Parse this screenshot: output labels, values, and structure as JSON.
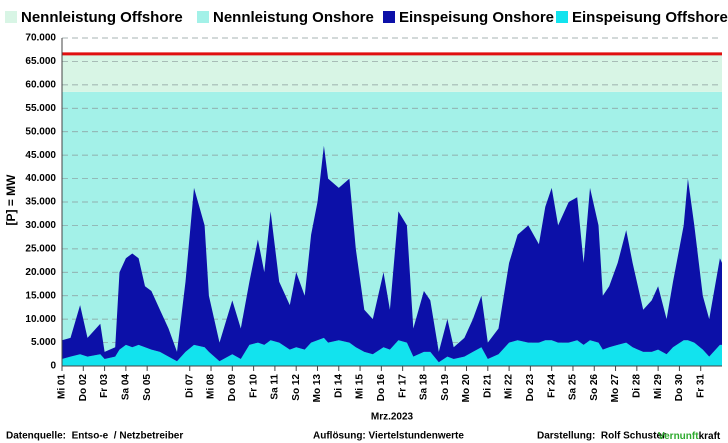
{
  "chart_data": {
    "type": "stacked_area",
    "legend": "top",
    "grid": true,
    "y_label": "[P] = MW",
    "x_label": "Mrz.2023",
    "capacity": [
      {
        "name": "Nennleistung Onshore",
        "color": "#a3f1e8",
        "value": 58500
      },
      {
        "name": "Nennleistung Offshore",
        "color": "#d8f5e5",
        "value": 8100
      }
    ],
    "capacity_line_color": "#e01010",
    "xlim": [
      0,
      31
    ],
    "xticks": [
      {
        "value": 0,
        "label": "Mi 01"
      },
      {
        "value": 1,
        "label": "Do 02"
      },
      {
        "value": 2,
        "label": "Fr 03"
      },
      {
        "value": 3,
        "label": "Sa 04"
      },
      {
        "value": 4,
        "label": "So 05"
      },
      {
        "value": 6,
        "label": "Di 07"
      },
      {
        "value": 7,
        "label": "Mi 08"
      },
      {
        "value": 8,
        "label": "Do 09"
      },
      {
        "value": 9,
        "label": "Fr 10"
      },
      {
        "value": 10,
        "label": "Sa 11"
      },
      {
        "value": 11,
        "label": "So 12"
      },
      {
        "value": 12,
        "label": "Mo 13"
      },
      {
        "value": 13,
        "label": "Di 14"
      },
      {
        "value": 14,
        "label": "Mi 15"
      },
      {
        "value": 15,
        "label": "Do 16"
      },
      {
        "value": 16,
        "label": "Fr 17"
      },
      {
        "value": 17,
        "label": "Sa 18"
      },
      {
        "value": 18,
        "label": "So 19"
      },
      {
        "value": 19,
        "label": "Mo 20"
      },
      {
        "value": 20,
        "label": "Di 21"
      },
      {
        "value": 21,
        "label": "Mi 22"
      },
      {
        "value": 22,
        "label": "Do 23"
      },
      {
        "value": 23,
        "label": "Fr 24"
      },
      {
        "value": 24,
        "label": "Sa 25"
      },
      {
        "value": 25,
        "label": "So 26"
      },
      {
        "value": 26,
        "label": "Mo 27"
      },
      {
        "value": 27,
        "label": "Di 28"
      },
      {
        "value": 28,
        "label": "Mi 29"
      },
      {
        "value": 29,
        "label": "Do 30"
      },
      {
        "value": 30,
        "label": "Fr 31"
      }
    ],
    "ylim": [
      0,
      70000
    ],
    "yticks": [
      0,
      {
        "value": 5000,
        "label": "5.000"
      },
      {
        "value": 10000,
        "label": "10.000"
      },
      {
        "value": 15000,
        "label": "15.000"
      },
      {
        "value": 20000,
        "label": "20.000"
      },
      {
        "value": 25000,
        "label": "25.000"
      },
      {
        "value": 30000,
        "label": "30.000"
      },
      {
        "value": 35000,
        "label": "35.000"
      },
      {
        "value": 40000,
        "label": "40.000"
      },
      {
        "value": 45000,
        "label": "45.000"
      },
      {
        "value": 50000,
        "label": "50.000"
      },
      {
        "value": 55000,
        "label": "55.000"
      },
      {
        "value": 60000,
        "label": "60.000"
      },
      {
        "value": 65000,
        "label": "65.000"
      },
      {
        "value": 70000,
        "label": "70.000"
      }
    ],
    "x": [
      0,
      0.4,
      0.85,
      1.2,
      1.8,
      2.0,
      2.5,
      2.7,
      3.0,
      3.3,
      3.6,
      3.9,
      4.2,
      4.6,
      5.0,
      5.4,
      5.8,
      6.2,
      6.7,
      6.9,
      7.4,
      8.0,
      8.4,
      8.8,
      9.2,
      9.5,
      9.8,
      10.2,
      10.7,
      11.0,
      11.4,
      11.7,
      12.0,
      12.3,
      12.5,
      13.0,
      13.5,
      13.8,
      14.2,
      14.6,
      15.1,
      15.4,
      15.8,
      16.2,
      16.5,
      17.0,
      17.3,
      17.7,
      18.1,
      18.4,
      18.9,
      19.3,
      19.7,
      20.0,
      20.5,
      21.0,
      21.4,
      21.9,
      22.4,
      22.7,
      23.0,
      23.3,
      23.8,
      24.2,
      24.5,
      24.8,
      25.2,
      25.4,
      25.7,
      26.1,
      26.5,
      26.8,
      27.3,
      27.7,
      28.0,
      28.4,
      28.7,
      29.2,
      29.4,
      29.7,
      30.1,
      30.4,
      30.9,
      31.0
    ],
    "series": [
      {
        "name": "Einspeisung Offshore",
        "color": "#12e3ee",
        "values": [
          1500,
          2000,
          2500,
          2000,
          2500,
          1500,
          2000,
          3500,
          4500,
          4000,
          4500,
          4000,
          3500,
          3000,
          2000,
          1000,
          3000,
          4500,
          4000,
          3000,
          1000,
          2500,
          1500,
          4500,
          5000,
          4500,
          5500,
          5000,
          3500,
          4000,
          3500,
          5000,
          5500,
          6000,
          5000,
          5500,
          5000,
          4000,
          3000,
          2500,
          4000,
          3500,
          5500,
          5000,
          2000,
          3000,
          3000,
          800,
          2000,
          1500,
          2000,
          3000,
          4000,
          1500,
          2500,
          5000,
          5500,
          5000,
          5000,
          5500,
          5500,
          5000,
          5000,
          5500,
          4500,
          5500,
          5000,
          3500,
          4000,
          4500,
          5000,
          4000,
          3000,
          3000,
          3500,
          2500,
          4000,
          5500,
          5500,
          5000,
          3500,
          2000,
          4500,
          4500
        ]
      },
      {
        "name": "Einspeisung Onshore",
        "color": "#0c10a8",
        "values": [
          4000,
          4000,
          10500,
          4000,
          6500,
          1500,
          2000,
          16500,
          18500,
          20000,
          18500,
          13000,
          12500,
          9000,
          6000,
          2000,
          15000,
          33500,
          26000,
          12000,
          4000,
          11500,
          6500,
          13500,
          22000,
          15500,
          27500,
          13000,
          9500,
          16000,
          11500,
          23000,
          29500,
          41000,
          35000,
          32500,
          35000,
          21000,
          9000,
          7500,
          16000,
          8500,
          27500,
          25000,
          6000,
          13000,
          11000,
          2200,
          8000,
          2500,
          4000,
          7000,
          11000,
          3500,
          5500,
          17000,
          22500,
          25000,
          21000,
          28500,
          32500,
          25000,
          30000,
          30500,
          17500,
          32500,
          25000,
          11500,
          13000,
          17500,
          24000,
          18000,
          9000,
          11000,
          13500,
          7500,
          14000,
          24500,
          34500,
          25000,
          11500,
          8000,
          18500,
          17500
        ]
      }
    ],
    "footer": {
      "source": "Datenquelle:  Entso-e  / Netzbetreiber",
      "resolution": "Auflösung: Viertelstundenwerte",
      "author": "Darstellung:  Rolf Schuster",
      "brand_1": "Vernunft",
      "brand_2": "kraft",
      "brand_1_color": "#2eaa2e"
    }
  }
}
